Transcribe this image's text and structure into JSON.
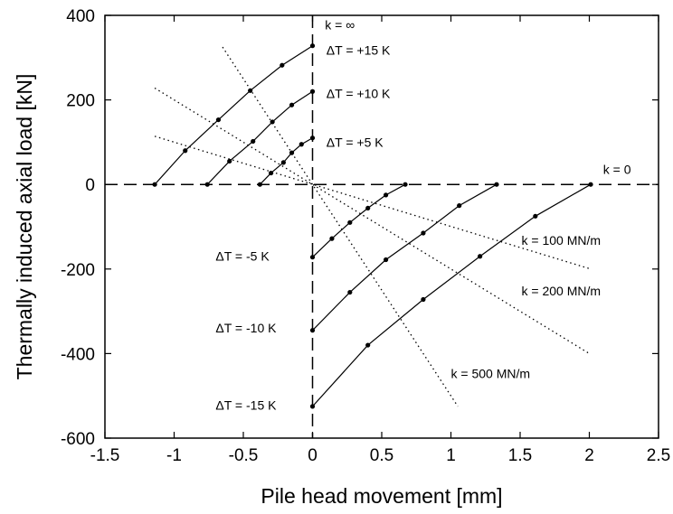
{
  "chart_data": {
    "type": "line",
    "title": "",
    "xlabel": "Pile head movement [mm]",
    "ylabel": "Thermally induced axial load [kN]",
    "xlim": [
      -1.5,
      2.5
    ],
    "ylim": [
      -600,
      400
    ],
    "xticks": [
      -1.5,
      -1,
      -0.5,
      0,
      0.5,
      1,
      1.5,
      2,
      2.5
    ],
    "yticks": [
      -600,
      -400,
      -200,
      0,
      200,
      400
    ],
    "xtick_labels": [
      "-1.5",
      "-1",
      "-0.5",
      "0",
      "0.5",
      "1",
      "1.5",
      "2",
      "2.5"
    ],
    "ytick_labels": [
      "-600",
      "-400",
      "-200",
      "0",
      "200",
      "400"
    ],
    "grid": false,
    "series": [
      {
        "name": "ΔT = +15 K",
        "style": "solid-markers",
        "x": [
          -1.14,
          -0.92,
          -0.68,
          -0.45,
          -0.22,
          0.0
        ],
        "y": [
          0,
          80,
          153,
          222,
          282,
          328
        ]
      },
      {
        "name": "ΔT = +10 K",
        "style": "solid-markers",
        "x": [
          -0.76,
          -0.6,
          -0.43,
          -0.29,
          -0.15,
          0.0
        ],
        "y": [
          0,
          55,
          102,
          148,
          188,
          220
        ]
      },
      {
        "name": "ΔT = +5 K",
        "style": "solid-markers",
        "x": [
          -0.38,
          -0.3,
          -0.21,
          -0.15,
          -0.08,
          0.0
        ],
        "y": [
          0,
          27,
          52,
          75,
          95,
          110
        ]
      },
      {
        "name": "ΔT = -5 K",
        "style": "solid-markers",
        "x": [
          0.0,
          0.14,
          0.27,
          0.4,
          0.53,
          0.67
        ],
        "y": [
          -172,
          -128,
          -90,
          -56,
          -25,
          0
        ]
      },
      {
        "name": "ΔT = -10 K",
        "style": "solid-markers",
        "x": [
          0.0,
          0.27,
          0.53,
          0.8,
          1.06,
          1.33
        ],
        "y": [
          -345,
          -255,
          -178,
          -115,
          -50,
          0
        ]
      },
      {
        "name": "ΔT = -15 K",
        "style": "solid-markers",
        "x": [
          0.0,
          0.4,
          0.8,
          1.21,
          1.61,
          2.01
        ],
        "y": [
          -525,
          -380,
          -272,
          -170,
          -75,
          0
        ]
      },
      {
        "name": "k = 100 MN/m",
        "style": "dotted",
        "x": [
          -1.14,
          2.01
        ],
        "y": [
          114,
          -200
        ]
      },
      {
        "name": "k = 200 MN/m",
        "style": "dotted",
        "x": [
          -1.14,
          2.01
        ],
        "y": [
          228,
          -402
        ]
      },
      {
        "name": "k = 500 MN/m",
        "style": "dotted",
        "x": [
          -0.65,
          1.05
        ],
        "y": [
          325,
          -525
        ]
      }
    ],
    "reference_lines": [
      {
        "name": "k = ∞",
        "axis": "x",
        "value": 0,
        "style": "dashed"
      },
      {
        "name": "k = 0",
        "axis": "y",
        "value": 0,
        "style": "dashed"
      }
    ],
    "annotations": [
      {
        "text": "k = ∞",
        "x": 0.09,
        "y": 375
      },
      {
        "text": "ΔT = +15 K",
        "x": 0.1,
        "y": 315
      },
      {
        "text": "ΔT = +10 K",
        "x": 0.1,
        "y": 212
      },
      {
        "text": "ΔT = +5 K",
        "x": 0.1,
        "y": 97
      },
      {
        "text": "k = 0",
        "x": 2.1,
        "y": 33
      },
      {
        "text": "ΔT = -5 K",
        "x": -0.7,
        "y": -172
      },
      {
        "text": "k = 100 MN/m",
        "x": 1.51,
        "y": -135
      },
      {
        "text": "ΔT = -10 K",
        "x": -0.7,
        "y": -342
      },
      {
        "text": "k = 200 MN/m",
        "x": 1.51,
        "y": -255
      },
      {
        "text": "k = 500 MN/m",
        "x": 1.0,
        "y": -450
      },
      {
        "text": "ΔT = -15 K",
        "x": -0.7,
        "y": -525
      }
    ]
  }
}
